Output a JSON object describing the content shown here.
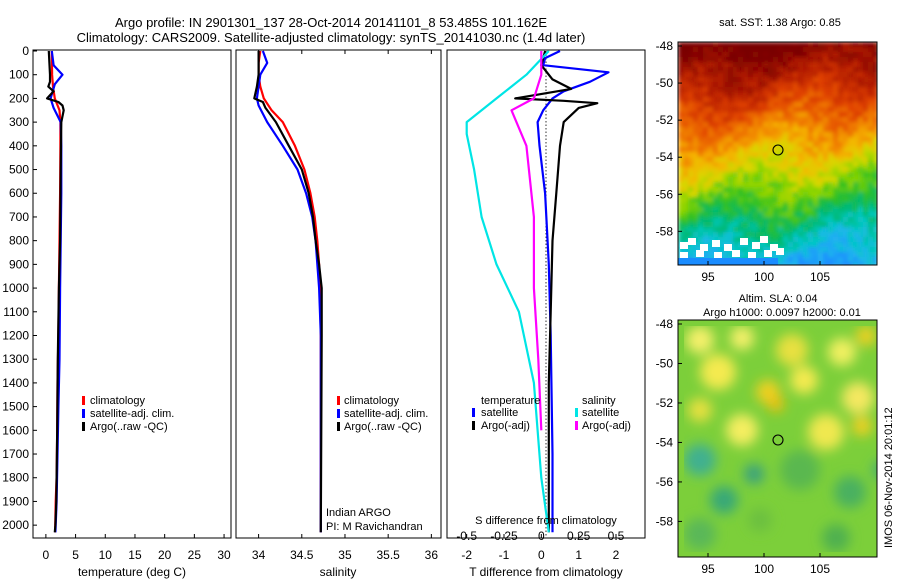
{
  "header": {
    "title_line1": "Argo profile: IN 2901301_137 28-Oct-2014 20141101_8 53.485S 101.162E",
    "title_line2": "Climatology: CARS2009. Satellite-adjusted climatology: synTS_20141030.nc (1.4d later)"
  },
  "footer": {
    "watermark": "IMOS 06-Nov-2014 20:01:12",
    "credit_line1": "Indian ARGO",
    "credit_line2": "PI: M Ravichandran"
  },
  "colors": {
    "climatology": "#ff0000",
    "satellite": "#0000ff",
    "argo": "#000000",
    "satellite_salinity": "#00e5e5",
    "argo_salinity": "#ff00ff"
  },
  "chart_data": [
    {
      "id": "temperature",
      "type": "line",
      "xlabel": "temperature (deg C)",
      "ylabel": "",
      "xlim": [
        -2,
        31
      ],
      "ylim": [
        2050,
        0
      ],
      "xticks": [
        0,
        5,
        10,
        15,
        20,
        25,
        30
      ],
      "yticks": [
        0,
        100,
        200,
        300,
        400,
        500,
        600,
        700,
        800,
        900,
        1000,
        1100,
        1200,
        1300,
        1400,
        1500,
        1600,
        1700,
        1800,
        1900,
        2000
      ],
      "legend": [
        "climatology",
        "satellite-adj. clim.",
        "Argo(..raw -QC)"
      ],
      "legend_position": "bottom-right",
      "series": [
        {
          "name": "climatology",
          "color": "#ff0000",
          "x": [
            1.0,
            1.05,
            1.2,
            1.5,
            2.3,
            2.45,
            2.45,
            2.4,
            2.3,
            2.2,
            2.1,
            1.95,
            1.9,
            1.8,
            1.65,
            1.55
          ],
          "y": [
            0,
            100,
            150,
            200,
            250,
            300,
            400,
            600,
            800,
            1000,
            1200,
            1400,
            1600,
            1800,
            1900,
            2030
          ]
        },
        {
          "name": "satellite-adj. clim.",
          "color": "#0000ff",
          "x": [
            1.0,
            1.3,
            2.8,
            1.5,
            0.8,
            1.3,
            2.5,
            2.6,
            2.6,
            2.4,
            2.3,
            2.1,
            1.95,
            1.8,
            1.6
          ],
          "y": [
            0,
            60,
            100,
            140,
            200,
            240,
            300,
            400,
            600,
            1000,
            1300,
            1500,
            1700,
            1900,
            2030
          ]
        },
        {
          "name": "Argo(..raw -QC)",
          "color": "#000000",
          "x": [
            0.5,
            0.7,
            0.7,
            0.4,
            1.3,
            0.2,
            2.1,
            2.8,
            3.0,
            2.6,
            2.5,
            2.4,
            2.2,
            2.0,
            1.9,
            1.75,
            1.6,
            1.5
          ],
          "y": [
            0,
            100,
            130,
            150,
            170,
            200,
            215,
            230,
            250,
            300,
            500,
            800,
            1000,
            1300,
            1600,
            1900,
            2000,
            2030
          ]
        }
      ]
    },
    {
      "id": "salinity",
      "type": "line",
      "xlabel": "salinity",
      "ylabel": "",
      "xlim": [
        33.75,
        36.1
      ],
      "ylim": [
        2050,
        0
      ],
      "xticks": [
        34,
        34.5,
        35,
        35.5,
        36
      ],
      "legend": [
        "climatology",
        "satellite-adj. clim.",
        "Argo(..raw -QC)"
      ],
      "legend_position": "bottom-right",
      "series": [
        {
          "name": "climatology",
          "color": "#ff0000",
          "x": [
            34.02,
            34.0,
            34.0,
            34.02,
            34.06,
            34.15,
            34.28,
            34.42,
            34.53,
            34.6,
            34.65,
            34.68,
            34.7,
            34.71,
            34.72,
            34.72,
            34.72
          ],
          "y": [
            0,
            50,
            100,
            150,
            200,
            250,
            300,
            400,
            500,
            600,
            700,
            800,
            900,
            1000,
            1200,
            1600,
            2030
          ]
        },
        {
          "name": "satellite-adj. clim.",
          "color": "#0000ff",
          "x": [
            34.05,
            34.1,
            34.02,
            34.0,
            33.98,
            34.0,
            34.1,
            34.28,
            34.45,
            34.55,
            34.62,
            34.66,
            34.7,
            34.72,
            34.72
          ],
          "y": [
            0,
            50,
            100,
            150,
            200,
            230,
            300,
            400,
            500,
            600,
            700,
            800,
            1000,
            1200,
            2030
          ]
        },
        {
          "name": "Argo(..raw -QC)",
          "color": "#000000",
          "x": [
            34.0,
            34.0,
            33.98,
            33.95,
            34.05,
            34.08,
            34.2,
            34.35,
            34.5,
            34.58,
            34.63,
            34.66,
            34.7,
            34.73,
            34.73,
            34.72
          ],
          "y": [
            0,
            100,
            150,
            200,
            215,
            240,
            300,
            400,
            500,
            600,
            700,
            800,
            900,
            1000,
            1200,
            2030
          ]
        }
      ]
    },
    {
      "id": "difference",
      "type": "line",
      "xlabel": "T difference from climatology",
      "x2label": "S difference from climatology",
      "ylabel": "",
      "xlim": [
        -2.5,
        2.75
      ],
      "ylim": [
        2050,
        0
      ],
      "xticks": [
        -2,
        -1,
        0,
        1,
        2
      ],
      "x2ticks": [
        "-0.5",
        "-0.25",
        "0",
        "0.25",
        "0.5"
      ],
      "legend_titles": [
        "temperature",
        "salinity"
      ],
      "legend": [
        "satellite",
        "Argo(-adj)",
        "satellite",
        "Argo(-adj)"
      ],
      "legend_position": "bottom-right",
      "series": [
        {
          "name": "satellite",
          "group": "temperature",
          "color": "#0000ff",
          "x": [
            0.5,
            0.1,
            0.05,
            1.8,
            1.3,
            0.6,
            0.3,
            0.05,
            -0.1,
            -0.05,
            0.1,
            0.2,
            0.25,
            0.3,
            0.3
          ],
          "y": [
            0,
            30,
            60,
            90,
            130,
            170,
            200,
            250,
            300,
            400,
            600,
            900,
            1200,
            1700,
            2030
          ]
        },
        {
          "name": "Argo(-adj)",
          "group": "temperature",
          "color": "#000000",
          "x": [
            0.1,
            0.0,
            0.3,
            0.8,
            -0.7,
            0.6,
            1.5,
            1.0,
            0.6,
            0.5,
            0.4,
            0.3,
            0.25,
            0.2,
            0.2,
            0.2
          ],
          "y": [
            0,
            60,
            120,
            160,
            200,
            210,
            220,
            240,
            300,
            400,
            600,
            800,
            1100,
            1400,
            1800,
            2030
          ]
        },
        {
          "name": "satellite",
          "group": "salinity",
          "color": "#00e5e5",
          "x": [
            0.05,
            -0.1,
            -0.3,
            -0.5,
            -0.5,
            -0.45,
            -0.4,
            -0.3,
            -0.15,
            -0.05,
            0.0,
            0.05
          ],
          "y": [
            0,
            100,
            200,
            300,
            350,
            500,
            700,
            900,
            1100,
            1400,
            1800,
            2030
          ]
        },
        {
          "name": "Argo(-adj)",
          "group": "salinity",
          "color": "#ff00ff",
          "x": [
            0.0,
            0.0,
            -0.05,
            -0.2,
            -0.1,
            -0.05,
            -0.05,
            -0.02,
            0.0
          ],
          "y": [
            0,
            100,
            200,
            250,
            400,
            700,
            1000,
            1300,
            1600
          ]
        }
      ]
    },
    {
      "id": "sst_map",
      "type": "heatmap",
      "title": "sat. SST: 1.38 Argo: 0.85",
      "xticks": [
        "95",
        "100",
        "105"
      ],
      "yticks": [
        "-48",
        "-50",
        "-52",
        "-54",
        "-56",
        "-58"
      ],
      "marker": {
        "lon": 101.162,
        "lat": -53.485
      }
    },
    {
      "id": "sla_map",
      "type": "heatmap",
      "title_line1": "Altim. SLA: 0.04",
      "title_line2": "Argo h1000: 0.0097 h2000: 0.01",
      "xticks": [
        "95",
        "100",
        "105"
      ],
      "yticks": [
        "-48",
        "-50",
        "-52",
        "-54",
        "-56",
        "-58"
      ],
      "marker": {
        "lon": 101.162,
        "lat": -53.485
      }
    }
  ]
}
